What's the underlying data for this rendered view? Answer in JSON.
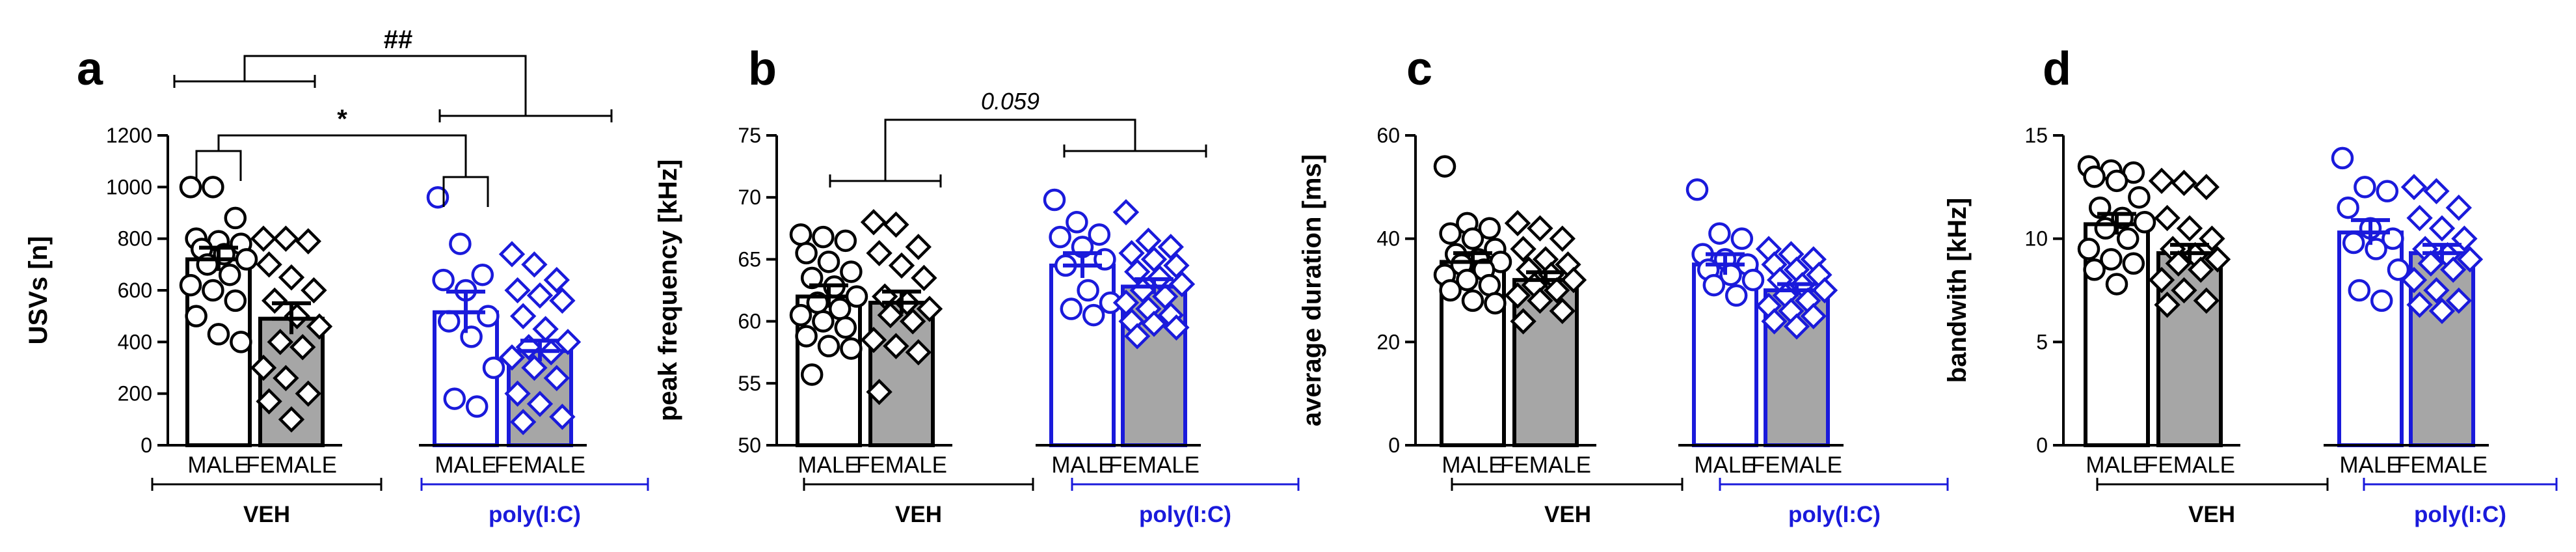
{
  "colors": {
    "veh": "#000000",
    "poly": "#1a1adb",
    "female_fill": "#a6a6a6"
  },
  "chart_data": [
    {
      "type": "bar",
      "panel": "a",
      "ylabel": "USVs [n]",
      "ylim": [
        0,
        1200
      ],
      "yticks": [
        0,
        200,
        400,
        600,
        800,
        1000,
        1200
      ],
      "groups": [
        {
          "key": "VEH",
          "label": "VEH",
          "categories": [
            "MALE",
            "FEMALE"
          ]
        },
        {
          "key": "POLY",
          "label": "poly(I:C)",
          "categories": [
            "MALE",
            "FEMALE"
          ]
        }
      ],
      "series": [
        {
          "name": "VEH MALE",
          "group": "VEH",
          "sex": "MALE",
          "mean": 720,
          "sem": 45,
          "points": [
            1000,
            1000,
            880,
            800,
            790,
            780,
            760,
            740,
            720,
            700,
            660,
            620,
            600,
            560,
            500,
            430,
            400
          ]
        },
        {
          "name": "VEH FEMALE",
          "group": "VEH",
          "sex": "FEMALE",
          "mean": 490,
          "sem": 60,
          "points": [
            800,
            800,
            790,
            700,
            650,
            600,
            560,
            500,
            460,
            400,
            380,
            300,
            260,
            200,
            170,
            100
          ]
        },
        {
          "name": "POLY MALE",
          "group": "POLY",
          "sex": "MALE",
          "mean": 515,
          "sem": 80,
          "points": [
            960,
            780,
            660,
            640,
            600,
            500,
            480,
            420,
            300,
            180,
            150
          ]
        },
        {
          "name": "POLY FEMALE",
          "group": "POLY",
          "sex": "FEMALE",
          "mean": 365,
          "sem": 40,
          "points": [
            740,
            700,
            640,
            600,
            580,
            560,
            500,
            450,
            400,
            380,
            360,
            340,
            300,
            260,
            200,
            160,
            110,
            90
          ]
        }
      ],
      "annotations": [
        {
          "text": "##",
          "between": [
            "VEH",
            "POLY"
          ],
          "level": "top"
        },
        {
          "text": "*",
          "between": [
            "VEH MALE",
            "POLY MALE"
          ],
          "level": "mid"
        }
      ]
    },
    {
      "type": "bar",
      "panel": "b",
      "ylabel": "peak frequency [kHz]",
      "ylim": [
        50,
        75
      ],
      "yticks": [
        50,
        55,
        60,
        65,
        70,
        75
      ],
      "groups": [
        {
          "key": "VEH",
          "label": "VEH",
          "categories": [
            "MALE",
            "FEMALE"
          ]
        },
        {
          "key": "POLY",
          "label": "poly(I:C)",
          "categories": [
            "MALE",
            "FEMALE"
          ]
        }
      ],
      "series": [
        {
          "name": "VEH MALE",
          "group": "VEH",
          "sex": "MALE",
          "mean": 62.0,
          "sem": 0.9,
          "points": [
            67,
            66.8,
            66.5,
            65.5,
            64.8,
            64,
            63.5,
            62.8,
            62,
            61.5,
            61,
            60.5,
            60,
            59.5,
            58.8,
            58,
            57.8,
            55.7
          ]
        },
        {
          "name": "VEH FEMALE",
          "group": "VEH",
          "sex": "FEMALE",
          "mean": 61.5,
          "sem": 0.9,
          "points": [
            68,
            67.8,
            66,
            65.5,
            64.5,
            63.5,
            62,
            61.5,
            61,
            60.5,
            60,
            58.5,
            58,
            57.5,
            54.3
          ]
        },
        {
          "name": "POLY MALE",
          "group": "POLY",
          "sex": "MALE",
          "mean": 64.5,
          "sem": 1.0,
          "points": [
            69.8,
            68,
            67,
            66.8,
            66,
            65,
            64.5,
            62.5,
            61.5,
            61,
            60.5
          ]
        },
        {
          "name": "POLY FEMALE",
          "group": "POLY",
          "sex": "FEMALE",
          "mean": 62.8,
          "sem": 0.6,
          "points": [
            68.8,
            66.5,
            66,
            65.5,
            65,
            64.5,
            64,
            63.5,
            63,
            62.5,
            62,
            61.5,
            61,
            60.5,
            60,
            59.8,
            59.5,
            58.8
          ]
        }
      ],
      "annotations": [
        {
          "text": "0.059",
          "between": [
            "VEH",
            "POLY"
          ],
          "level": "top",
          "italic": true
        }
      ]
    },
    {
      "type": "bar",
      "panel": "c",
      "ylabel": "average duration [ms]",
      "ylim": [
        0,
        60
      ],
      "yticks": [
        0,
        20,
        40,
        60
      ],
      "groups": [
        {
          "key": "VEH",
          "label": "VEH",
          "categories": [
            "MALE",
            "FEMALE"
          ]
        },
        {
          "key": "POLY",
          "label": "poly(I:C)",
          "categories": [
            "MALE",
            "FEMALE"
          ]
        }
      ],
      "series": [
        {
          "name": "VEH MALE",
          "group": "VEH",
          "sex": "MALE",
          "mean": 35.5,
          "sem": 1.7,
          "points": [
            54,
            43,
            42,
            41,
            40,
            38,
            37,
            36,
            35.5,
            35,
            34,
            33,
            32,
            31,
            30,
            28,
            27.5
          ]
        },
        {
          "name": "VEH FEMALE",
          "group": "VEH",
          "sex": "FEMALE",
          "mean": 32.0,
          "sem": 1.5,
          "points": [
            43,
            42,
            40,
            38,
            36,
            35,
            34,
            33,
            32,
            31,
            30,
            29,
            28,
            26,
            24
          ]
        },
        {
          "name": "POLY MALE",
          "group": "POLY",
          "sex": "MALE",
          "mean": 35.0,
          "sem": 2.0,
          "points": [
            49.5,
            41,
            40,
            37,
            36,
            35,
            34,
            33,
            32,
            31,
            29
          ]
        },
        {
          "name": "POLY FEMALE",
          "group": "POLY",
          "sex": "FEMALE",
          "mean": 30.0,
          "sem": 1.2,
          "points": [
            38,
            37,
            36,
            35,
            34,
            33,
            32,
            31,
            30,
            29,
            28,
            27,
            26,
            25,
            24,
            23
          ]
        }
      ]
    },
    {
      "type": "bar",
      "panel": "d",
      "ylabel": "bandwith [kHz]",
      "ylim": [
        0,
        15
      ],
      "yticks": [
        0,
        5,
        10,
        15
      ],
      "groups": [
        {
          "key": "VEH",
          "label": "VEH",
          "categories": [
            "MALE",
            "FEMALE"
          ]
        },
        {
          "key": "POLY",
          "label": "poly(I:C)",
          "categories": [
            "MALE",
            "FEMALE"
          ]
        }
      ],
      "series": [
        {
          "name": "VEH MALE",
          "group": "VEH",
          "sex": "MALE",
          "mean": 10.7,
          "sem": 0.5,
          "points": [
            13.5,
            13.3,
            13.2,
            13,
            12.8,
            12,
            11.5,
            11,
            10.8,
            10.5,
            10,
            9.5,
            9,
            8.8,
            8.5,
            7.8
          ]
        },
        {
          "name": "VEH FEMALE",
          "group": "VEH",
          "sex": "FEMALE",
          "mean": 9.3,
          "sem": 0.4,
          "points": [
            12.8,
            12.7,
            12.5,
            11,
            10.5,
            10,
            9.5,
            9.2,
            9,
            8.8,
            8.5,
            8,
            7.5,
            7,
            6.8
          ]
        },
        {
          "name": "POLY MALE",
          "group": "POLY",
          "sex": "MALE",
          "mean": 10.3,
          "sem": 0.6,
          "points": [
            13.9,
            12.5,
            12.3,
            11.5,
            10.5,
            10,
            9.8,
            9.5,
            8.5,
            7.5,
            7
          ]
        },
        {
          "name": "POLY FEMALE",
          "group": "POLY",
          "sex": "FEMALE",
          "mean": 9.3,
          "sem": 0.4,
          "points": [
            12.5,
            12.3,
            11.5,
            11,
            10.5,
            10,
            9.5,
            9.2,
            9,
            8.8,
            8.5,
            8,
            7.5,
            7,
            6.8,
            6.5
          ]
        }
      ]
    }
  ]
}
